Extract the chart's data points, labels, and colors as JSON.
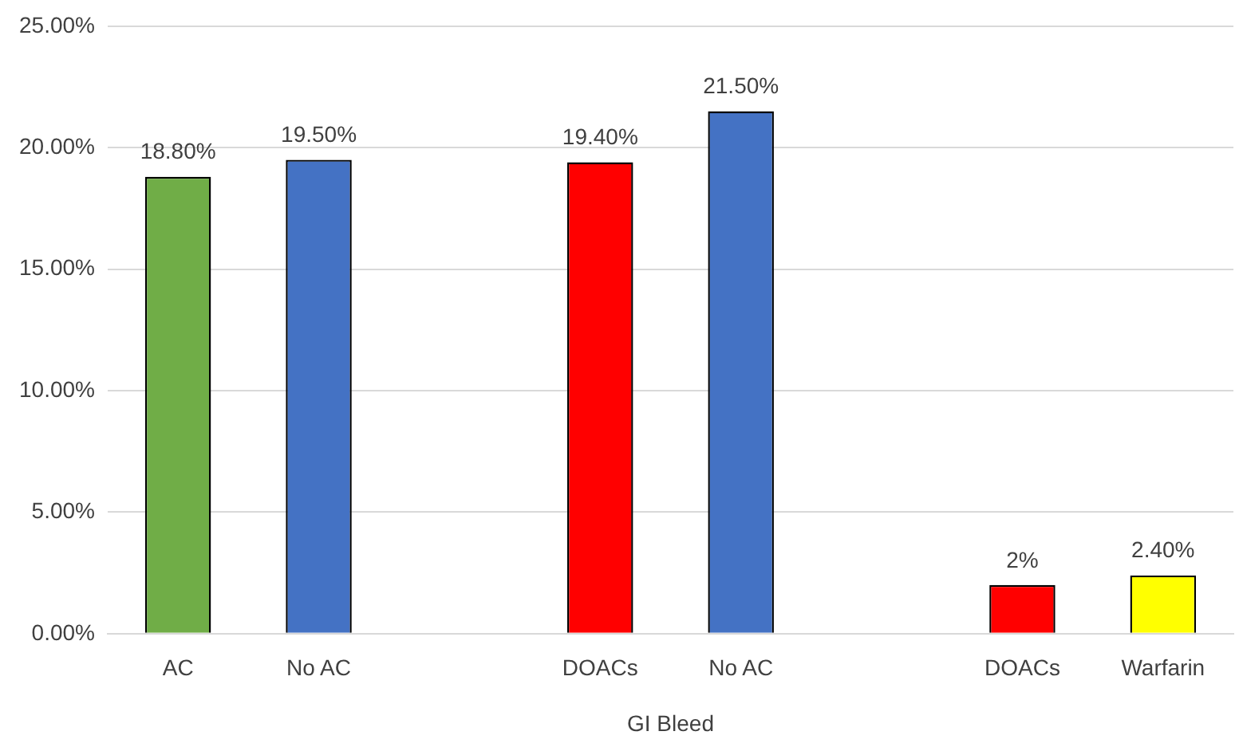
{
  "chart_data": {
    "type": "bar",
    "xlabel": "GI Bleed",
    "categories": [
      "AC",
      "No AC",
      null,
      "DOACs",
      "No AC",
      null,
      "DOACs",
      "Warfarin"
    ],
    "values": [
      18.8,
      19.5,
      null,
      19.4,
      21.5,
      null,
      2,
      2.4
    ],
    "colors": [
      "#70ad47",
      "#4472c4",
      "#ffffff",
      "#ff0000",
      "#4472c4",
      "#ffffff",
      "#ff0000",
      "#ffff00"
    ],
    "value_labels": [
      "18.80%",
      "19.50%",
      null,
      "19.40%",
      "21.50%",
      null,
      "2%",
      "2.40%"
    ],
    "ylim": [
      0,
      25
    ],
    "yticks": [
      {
        "value": 0,
        "label": "0.00%"
      },
      {
        "value": 5,
        "label": "5.00%"
      },
      {
        "value": 10,
        "label": "10.00%"
      },
      {
        "value": 15,
        "label": "15.00%"
      },
      {
        "value": 20,
        "label": "20.00%"
      },
      {
        "value": 25,
        "label": "25.00%"
      }
    ],
    "grid": "y",
    "legend": false
  }
}
